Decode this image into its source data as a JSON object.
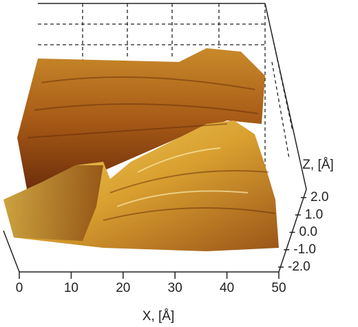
{
  "chart_data": {
    "type": "surface3d",
    "x_label": "X, [Å]",
    "z_label": "Z, [Å]",
    "xlim": [
      0,
      50
    ],
    "xticks": [
      0,
      10,
      20,
      30,
      40,
      50
    ],
    "zlim": [
      -2,
      2
    ],
    "zticks": [
      {
        "value": 2,
        "label": "2.0"
      },
      {
        "value": 1,
        "label": "1.0"
      },
      {
        "value": 0,
        "label": "0.0"
      },
      {
        "value": -1,
        "label": "-1.0"
      },
      {
        "value": -2,
        "label": "-2.0"
      }
    ]
  }
}
